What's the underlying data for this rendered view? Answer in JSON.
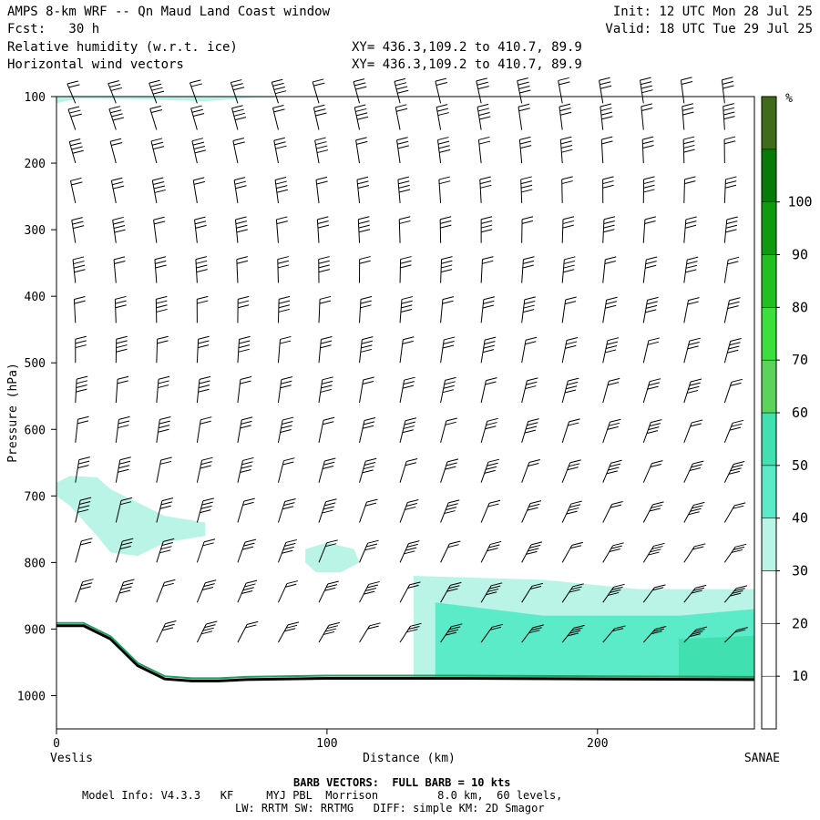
{
  "header": {
    "title": "AMPS 8-km WRF -- Qn Maud Land Coast window",
    "fcst": "Fcst:   30 h",
    "line2": "Relative humidity (w.r.t. ice)",
    "line3": "Horizontal wind vectors",
    "init": "Init: 12 UTC Mon 28 Jul 25",
    "valid": "Valid: 18 UTC Tue 29 Jul 25",
    "xy1": "XY= 436.3,109.2 to 410.7, 89.9",
    "xy2": "XY= 436.3,109.2 to 410.7, 89.9"
  },
  "footer": {
    "barb": "BARB VECTORS:  FULL BARB = 10 kts",
    "model": "Model Info: V4.3.3   KF     MYJ PBL  Morrison         8.0 km,  60 levels,",
    "physics": "LW: RRTM SW: RRTMG   DIFF: simple KM: 2D Smagor"
  },
  "chart_data": {
    "type": "heatmap",
    "title": "Relative humidity (w.r.t. ice)",
    "xlabel": "Distance (km)",
    "ylabel": "Pressure (hPa)",
    "xlim": [
      0,
      258
    ],
    "ylim": [
      1050,
      100
    ],
    "x_ticks": [
      0,
      100,
      200
    ],
    "y_ticks": [
      100,
      200,
      300,
      400,
      500,
      600,
      700,
      800,
      900,
      1000
    ],
    "x_endpoints": {
      "left": "Veslis",
      "right": "SANAE"
    },
    "colorbar": {
      "unit": "%",
      "levels": [
        10,
        20,
        30,
        40,
        50,
        60,
        70,
        80,
        90,
        100
      ],
      "colors": [
        "#ffffff",
        "#ffffff",
        "#ffffff",
        "#b9f4e6",
        "#5cebc9",
        "#40e0b0",
        "#5cd45c",
        "#3ce03c",
        "#20c020",
        "#109a10",
        "#087a08",
        "#3f6b1a"
      ]
    },
    "rh_regions": [
      {
        "level": "30-40",
        "polygon": [
          [
            0,
            100
          ],
          [
            35,
            100
          ],
          [
            80,
            102
          ],
          [
            80,
            100
          ],
          [
            0,
            100
          ]
        ]
      },
      {
        "level": "30-40",
        "polygon": [
          [
            0,
            110
          ],
          [
            8,
            103
          ],
          [
            30,
            104
          ],
          [
            55,
            107
          ],
          [
            80,
            100
          ],
          [
            0,
            100
          ]
        ]
      },
      {
        "level": "30-40",
        "polygon": [
          [
            0,
            680
          ],
          [
            5,
            670
          ],
          [
            15,
            672
          ],
          [
            20,
            690
          ],
          [
            40,
            730
          ],
          [
            55,
            740
          ],
          [
            55,
            760
          ],
          [
            40,
            770
          ],
          [
            30,
            790
          ],
          [
            20,
            785
          ],
          [
            15,
            760
          ],
          [
            5,
            715
          ],
          [
            0,
            700
          ]
        ]
      },
      {
        "level": "30-40",
        "polygon": [
          [
            92,
            780
          ],
          [
            100,
            770
          ],
          [
            110,
            780
          ],
          [
            112,
            800
          ],
          [
            105,
            815
          ],
          [
            96,
            815
          ],
          [
            92,
            800
          ]
        ]
      },
      {
        "level": "30-40",
        "polygon": [
          [
            132,
            820
          ],
          [
            180,
            826
          ],
          [
            215,
            840
          ],
          [
            258,
            840
          ],
          [
            258,
            980
          ],
          [
            132,
            980
          ]
        ]
      },
      {
        "level": "40-50",
        "polygon": [
          [
            140,
            860
          ],
          [
            180,
            880
          ],
          [
            230,
            880
          ],
          [
            258,
            870
          ],
          [
            258,
            980
          ],
          [
            140,
            980
          ]
        ]
      },
      {
        "level": "50-60",
        "polygon": [
          [
            230,
            915
          ],
          [
            258,
            910
          ],
          [
            258,
            980
          ],
          [
            230,
            980
          ]
        ]
      }
    ],
    "terrain_hPa": [
      {
        "x": 0,
        "p": 895
      },
      {
        "x": 10,
        "p": 895
      },
      {
        "x": 20,
        "p": 915
      },
      {
        "x": 30,
        "p": 955
      },
      {
        "x": 40,
        "p": 975
      },
      {
        "x": 50,
        "p": 978
      },
      {
        "x": 60,
        "p": 978
      },
      {
        "x": 70,
        "p": 976
      },
      {
        "x": 100,
        "p": 974
      },
      {
        "x": 150,
        "p": 974
      },
      {
        "x": 200,
        "p": 975
      },
      {
        "x": 258,
        "p": 976
      }
    ],
    "wind": {
      "columns_km": [
        7,
        22,
        37,
        52,
        67,
        82,
        97,
        112,
        127,
        142,
        157,
        172,
        187,
        202,
        217,
        232,
        247
      ],
      "levels_hPa": [
        110,
        150,
        200,
        260,
        320,
        380,
        440,
        500,
        560,
        620,
        680,
        740,
        800,
        860,
        920
      ],
      "note": "Barbs show wind speed/direction; full barb = 10 kts"
    },
    "grid": false,
    "legend": "colorbar-right"
  }
}
